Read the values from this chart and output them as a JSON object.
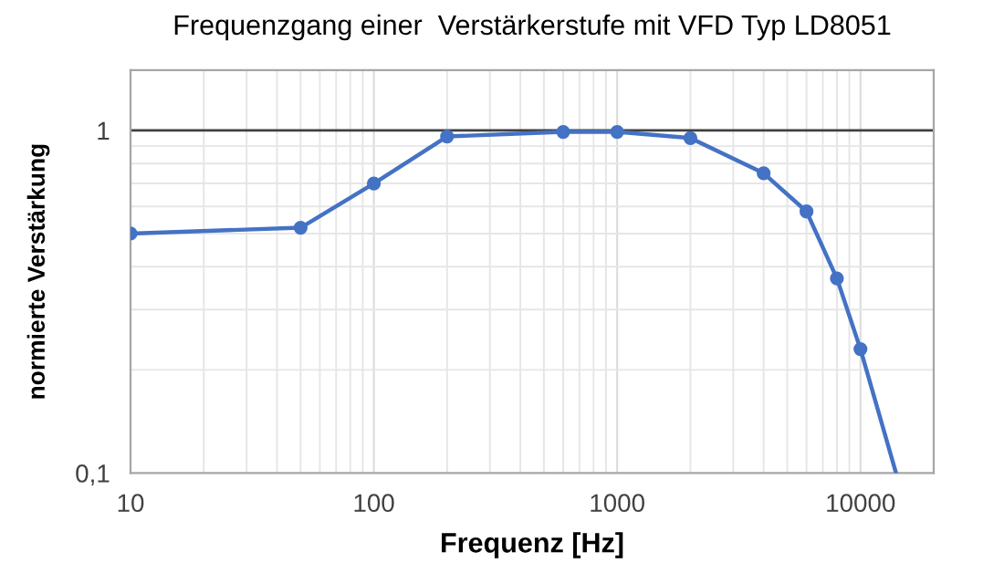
{
  "chart_data": {
    "type": "line",
    "title": "Frequenzgang einer  Verstärkerstufe mit VFD Typ LD8051",
    "xlabel": "Frequenz [Hz]",
    "ylabel": "normierte Verstärkung",
    "log": "xy",
    "grid": true,
    "marker": "circle",
    "line_style": "solid",
    "x": [
      10,
      50,
      100,
      200,
      600,
      1000,
      2000,
      4000,
      6000,
      8000,
      10000,
      14000
    ],
    "series": [
      {
        "color": "#4472c4",
        "values": [
          0.5,
          0.52,
          0.7,
          0.96,
          0.99,
          0.99,
          0.95,
          0.75,
          0.58,
          0.37,
          0.23,
          0.1
        ]
      }
    ],
    "xlim": [
      10,
      20000
    ],
    "ylim": [
      0.1,
      1.5
    ],
    "xticks": [
      10,
      100,
      1000,
      10000
    ],
    "yticks": [
      {
        "value": 1,
        "label": "1"
      },
      {
        "value": 0.1,
        "label": "0,1"
      }
    ],
    "ref_lines": [
      {
        "axis": "y",
        "value": 1,
        "color": "#404040",
        "line_style": "solid"
      }
    ]
  }
}
